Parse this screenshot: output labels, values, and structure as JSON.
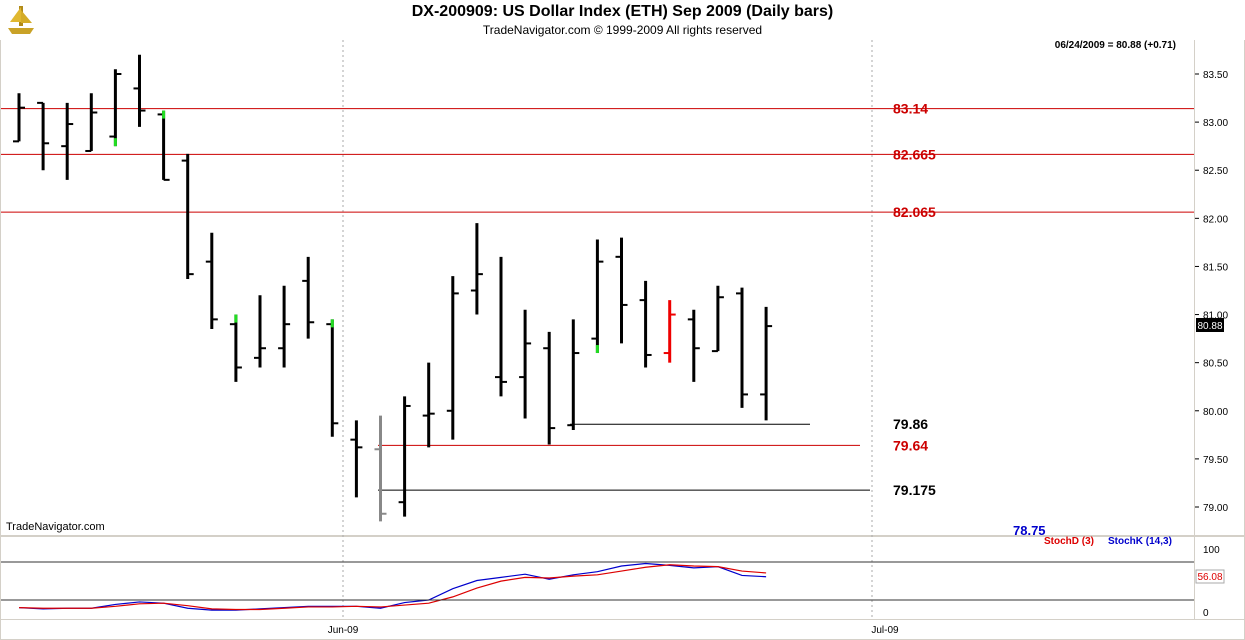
{
  "header": {
    "title": "DX-200909:  US Dollar Index (ETH) Sep 2009  (Daily bars)",
    "subtitle": "TradeNavigator.com © 1999-2009 All rights reserved"
  },
  "readout": "06/24/2009 = 80.88 (+0.71)",
  "watermark": "TradeNavigator.com",
  "colors": {
    "bar": "#000000",
    "bar_up_tick": "#22dd22",
    "bar_down_highlight": "#ee0000",
    "bar_gray": "#888888",
    "level_red": "#cc0000",
    "level_black": "#000000",
    "stochD": "#dd0000",
    "stochK": "#0000cc"
  },
  "chart_data": [
    {
      "type": "ohlc",
      "x_labels": [
        "Jun-09",
        "Jul-09"
      ],
      "y_ticks": [
        "83.50",
        "83.00",
        "82.50",
        "82.00",
        "81.50",
        "81.00",
        "80.50",
        "80.00",
        "79.50",
        "79.00"
      ],
      "ylim": [
        78.75,
        83.83
      ],
      "last_price_label": "80.88",
      "bars": [
        {
          "o": 82.8,
          "h": 83.3,
          "l": 82.8,
          "c": 83.15
        },
        {
          "o": 83.2,
          "h": 83.2,
          "l": 82.5,
          "c": 82.78
        },
        {
          "o": 82.75,
          "h": 83.2,
          "l": 82.4,
          "c": 82.98
        },
        {
          "o": 82.7,
          "h": 83.3,
          "l": 82.7,
          "c": 83.1
        },
        {
          "o": 82.85,
          "h": 83.55,
          "l": 82.75,
          "c": 83.5,
          "flag": "green_low"
        },
        {
          "o": 83.35,
          "h": 83.7,
          "l": 82.95,
          "c": 83.12
        },
        {
          "o": 83.08,
          "h": 83.12,
          "l": 82.4,
          "c": 82.4,
          "flag": "green_high"
        },
        {
          "o": 82.6,
          "h": 82.67,
          "l": 81.37,
          "c": 81.42
        },
        {
          "o": 81.55,
          "h": 81.85,
          "l": 80.85,
          "c": 80.95
        },
        {
          "o": 80.9,
          "h": 81.0,
          "l": 80.3,
          "c": 80.45,
          "flag": "green_high"
        },
        {
          "o": 80.55,
          "h": 81.2,
          "l": 80.45,
          "c": 80.65
        },
        {
          "o": 80.65,
          "h": 81.3,
          "l": 80.45,
          "c": 80.9
        },
        {
          "o": 81.35,
          "h": 81.6,
          "l": 80.75,
          "c": 80.92
        },
        {
          "o": 80.9,
          "h": 80.95,
          "l": 79.73,
          "c": 79.87,
          "flag": "green_high"
        },
        {
          "o": 79.7,
          "h": 79.9,
          "l": 79.1,
          "c": 79.62
        },
        {
          "o": 79.6,
          "h": 79.95,
          "l": 78.85,
          "c": 78.93,
          "flag": "gray"
        },
        {
          "o": 79.05,
          "h": 80.15,
          "l": 78.9,
          "c": 80.05
        },
        {
          "o": 79.95,
          "h": 80.5,
          "l": 79.62,
          "c": 79.97
        },
        {
          "o": 80.0,
          "h": 81.4,
          "l": 79.7,
          "c": 81.22
        },
        {
          "o": 81.25,
          "h": 81.95,
          "l": 81.0,
          "c": 81.42
        },
        {
          "o": 80.35,
          "h": 81.6,
          "l": 80.15,
          "c": 80.3
        },
        {
          "o": 80.35,
          "h": 81.05,
          "l": 79.92,
          "c": 80.7
        },
        {
          "o": 80.65,
          "h": 80.82,
          "l": 79.65,
          "c": 79.82
        },
        {
          "o": 79.85,
          "h": 80.95,
          "l": 79.8,
          "c": 80.6
        },
        {
          "o": 80.75,
          "h": 81.78,
          "l": 80.6,
          "c": 81.55,
          "flag": "green_low"
        },
        {
          "o": 81.6,
          "h": 81.8,
          "l": 80.7,
          "c": 81.1
        },
        {
          "o": 81.15,
          "h": 81.35,
          "l": 80.45,
          "c": 80.58
        },
        {
          "o": 80.6,
          "h": 81.15,
          "l": 80.5,
          "c": 81.0,
          "flag": "red"
        },
        {
          "o": 80.95,
          "h": 81.05,
          "l": 80.3,
          "c": 80.65
        },
        {
          "o": 80.62,
          "h": 81.3,
          "l": 80.62,
          "c": 81.18
        },
        {
          "o": 81.22,
          "h": 81.28,
          "l": 80.03,
          "c": 80.17
        },
        {
          "o": 80.17,
          "h": 81.08,
          "l": 79.9,
          "c": 80.88
        }
      ],
      "levels": [
        {
          "value": 83.14,
          "label": "83.14",
          "color": "red"
        },
        {
          "value": 82.665,
          "label": "82.665",
          "color": "red"
        },
        {
          "value": 82.065,
          "label": "82.065",
          "color": "red"
        },
        {
          "value": 79.86,
          "label": "79.86",
          "color": "black"
        },
        {
          "value": 79.64,
          "label": "79.64",
          "color": "red"
        },
        {
          "value": 79.175,
          "label": "79.175",
          "color": "black"
        }
      ],
      "stray_label": "78.75"
    },
    {
      "type": "line",
      "legend": [
        {
          "name": "StochD (3)",
          "color": "red"
        },
        {
          "name": "StochK (14,3)",
          "color": "blue"
        }
      ],
      "y_ticks": [
        "100",
        "0"
      ],
      "ylim": [
        0,
        100
      ],
      "last_value_label": "56.08",
      "series": [
        {
          "name": "StochK (14,3)",
          "values": [
            7,
            5,
            6,
            6,
            12,
            16,
            14,
            6,
            3,
            3,
            5,
            7,
            9,
            9,
            9,
            6,
            15,
            19,
            37,
            50,
            55,
            60,
            52,
            59,
            64,
            73,
            77,
            74,
            70,
            72,
            58,
            56
          ]
        },
        {
          "name": "StochD (3)",
          "values": [
            7,
            6,
            6,
            6,
            9,
            13,
            14,
            10,
            5,
            4,
            4,
            6,
            8,
            8,
            9,
            8,
            11,
            14,
            24,
            38,
            49,
            55,
            54,
            57,
            59,
            65,
            71,
            75,
            73,
            72,
            65,
            62
          ]
        }
      ]
    }
  ]
}
